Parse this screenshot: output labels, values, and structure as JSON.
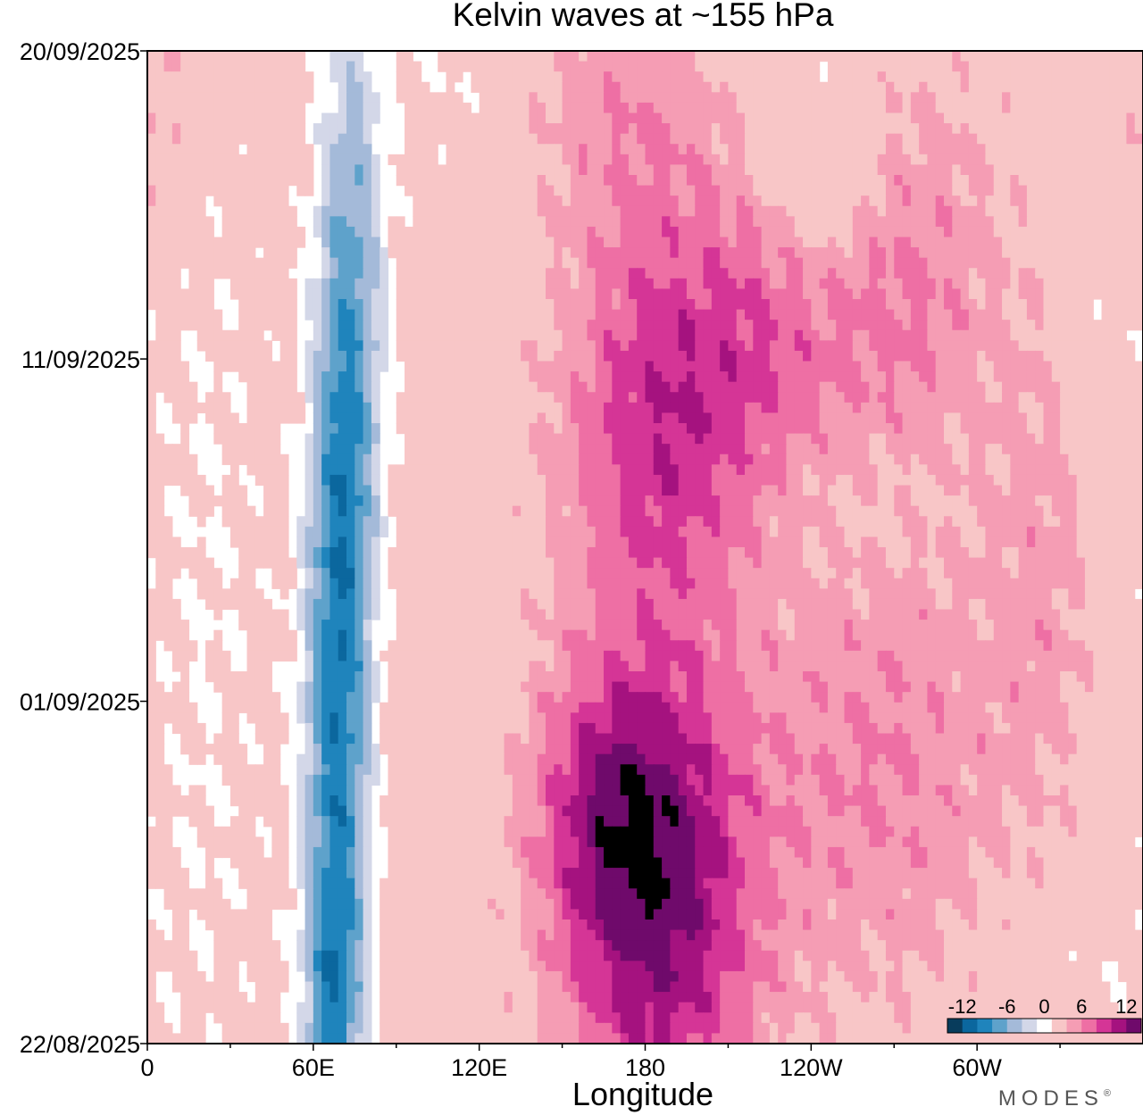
{
  "chart_data": {
    "type": "heatmap",
    "title": "Kelvin waves at ~155 hPa",
    "xlabel": "Longitude",
    "ylabel": "",
    "x_ticks": [
      "0",
      "60E",
      "120E",
      "180",
      "120W",
      "60W"
    ],
    "x_range_degrees_east": [
      0,
      360
    ],
    "y_ticks": [
      "20/09/2025",
      "11/09/2025",
      "01/09/2025",
      "22/08/2025"
    ],
    "y_range": [
      "22/08/2025",
      "20/09/2025"
    ],
    "y_days_from_start": [
      29,
      20,
      10,
      0
    ],
    "colorbar": {
      "tick_labels": [
        "-12",
        "-6",
        "0",
        "6",
        "12"
      ],
      "levels": [
        -14,
        -12,
        -10,
        -8,
        -6,
        -4,
        -2,
        2,
        4,
        6,
        8,
        10,
        12,
        14
      ],
      "colors": [
        "#083c5c",
        "#0b679e",
        "#1f84bc",
        "#5ea2cb",
        "#a4bad9",
        "#d3d7e8",
        "#ffffff",
        "#f8c6c7",
        "#f59db4",
        "#ee6fa4",
        "#d53596",
        "#a5127f",
        "#6f0a6b"
      ]
    },
    "fields": [
      {
        "lon": 68,
        "day": 8,
        "sx": 9,
        "sy": 7,
        "amp": -9
      },
      {
        "lon": 68,
        "day": 1,
        "sx": 8,
        "sy": 3,
        "amp": -6
      },
      {
        "lon": 72,
        "day": 17,
        "sx": 9,
        "sy": 6,
        "amp": -6
      },
      {
        "lon": 75,
        "day": 25,
        "sx": 10,
        "sy": 6,
        "amp": -5
      },
      {
        "lon": 110,
        "day": 29,
        "sx": 12,
        "sy": 3,
        "amp": -2
      },
      {
        "lon": 20,
        "day": 8,
        "sx": 20,
        "sy": 10,
        "amp": -2
      },
      {
        "lon": 20,
        "day": 22,
        "sx": 18,
        "sy": 6,
        "amp": -1
      },
      {
        "lon": 245,
        "day": 26,
        "sx": 15,
        "sy": 3,
        "amp": -3
      },
      {
        "lon": 265,
        "day": 16,
        "sx": 22,
        "sy": 2,
        "amp": -1.5
      },
      {
        "lon": 335,
        "day": 2,
        "sx": 18,
        "sy": 2,
        "amp": -1.5
      },
      {
        "lon": 345,
        "day": 21,
        "sx": 10,
        "sy": 2,
        "amp": -1.5
      },
      {
        "lon": 185,
        "day": 4,
        "sx": 25,
        "sy": 5,
        "amp": 10
      },
      {
        "lon": 165,
        "day": 7,
        "sx": 20,
        "sy": 3,
        "amp": 5
      },
      {
        "lon": 185,
        "day": 18,
        "sx": 26,
        "sy": 4,
        "amp": 7
      },
      {
        "lon": 225,
        "day": 21,
        "sx": 25,
        "sy": 3,
        "amp": 4
      },
      {
        "lon": 275,
        "day": 22,
        "sx": 25,
        "sy": 5,
        "amp": 4
      },
      {
        "lon": 175,
        "day": 27,
        "sx": 25,
        "sy": 3,
        "amp": 3.5
      },
      {
        "lon": 265,
        "day": 8,
        "sx": 35,
        "sy": 5,
        "amp": 4
      },
      {
        "lon": 325,
        "day": 14,
        "sx": 15,
        "sy": 6,
        "amp": 2.5
      },
      {
        "lon": 5,
        "day": 27,
        "sx": 10,
        "sy": 3,
        "amp": 2.5
      }
    ]
  },
  "watermark": "MODES",
  "watermark_mark": "®"
}
